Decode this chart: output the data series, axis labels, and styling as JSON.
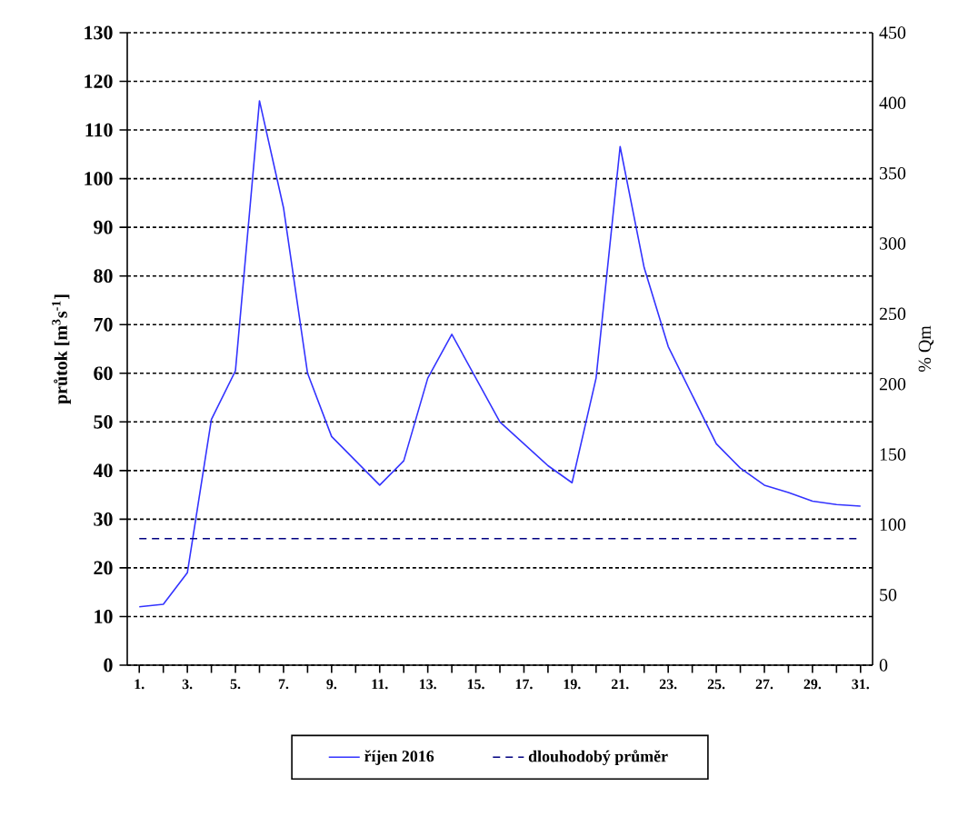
{
  "chart_data": {
    "type": "line",
    "ylabel": "průtok [m$^{3}$s$^{-1}$]",
    "y2label": "% Qm",
    "categories": [
      "1.",
      null,
      "3.",
      null,
      "5.",
      null,
      "7.",
      null,
      "9.",
      null,
      "11.",
      null,
      "13.",
      null,
      "15.",
      null,
      "17.",
      null,
      "19.",
      null,
      "21.",
      null,
      "23.",
      null,
      "25.",
      null,
      "27.",
      null,
      "29.",
      null,
      "31."
    ],
    "ylim": [
      0,
      130
    ],
    "yticks": [
      0,
      10,
      20,
      30,
      40,
      50,
      60,
      70,
      80,
      90,
      100,
      110,
      120,
      130
    ],
    "y2lim": [
      0,
      450
    ],
    "y2ticks": [
      0,
      50,
      100,
      150,
      200,
      250,
      300,
      350,
      400,
      450
    ],
    "grid": "y",
    "legend": "bottom",
    "series": [
      {
        "name": "říjen 2016",
        "color": "#3333ff",
        "values": [
          12,
          12.5,
          19,
          50.5,
          60.5,
          116,
          94,
          60,
          47,
          42,
          37,
          42,
          59,
          68,
          59,
          50,
          45.5,
          41,
          37.5,
          59,
          106.6,
          81.7,
          65.5,
          55.5,
          45.5,
          40.5,
          37,
          35.5,
          33.7,
          33,
          32.7
        ]
      },
      {
        "name": "dlouhodobý průměr",
        "color": "#000080",
        "line_style": "dashed",
        "values": [
          26,
          26,
          26,
          26,
          26,
          26,
          26,
          26,
          26,
          26,
          26,
          26,
          26,
          26,
          26,
          26,
          26,
          26,
          26,
          26,
          26,
          26,
          26,
          26,
          26,
          26,
          26,
          26,
          26,
          26,
          26
        ]
      }
    ]
  }
}
